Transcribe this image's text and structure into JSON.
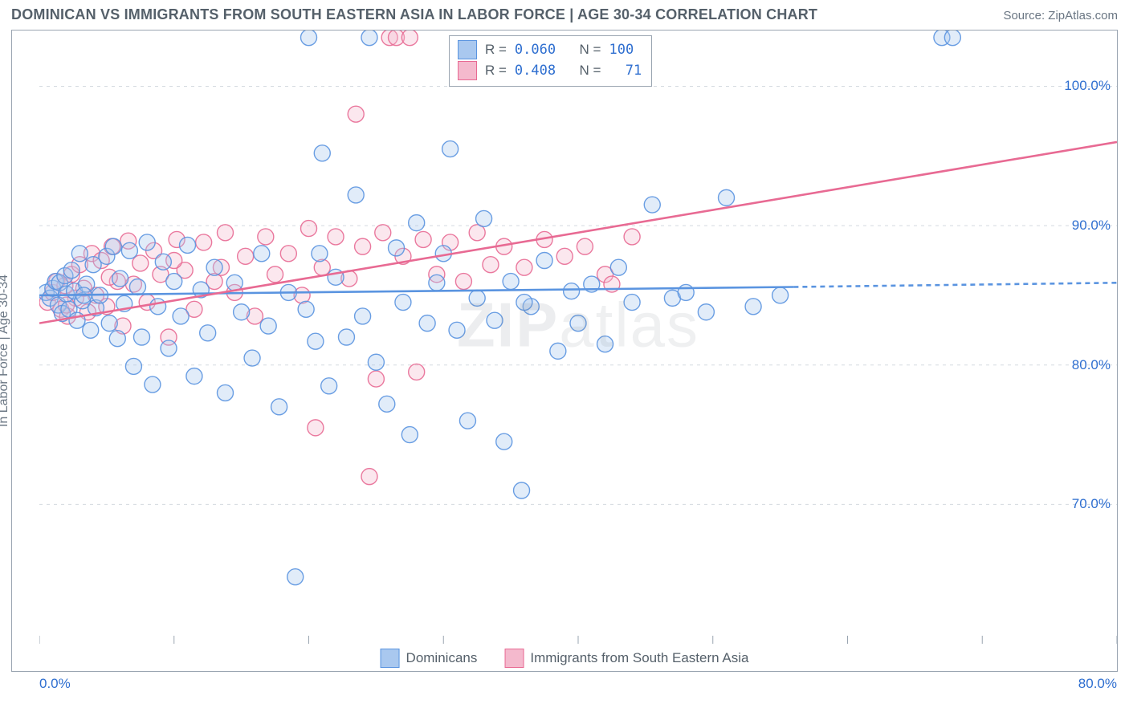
{
  "title": "DOMINICAN VS IMMIGRANTS FROM SOUTH EASTERN ASIA IN LABOR FORCE | AGE 30-34 CORRELATION CHART",
  "source": "Source: ZipAtlas.com",
  "watermark_bold": "ZIP",
  "watermark_rest": "atlas",
  "y_axis_label": "In Labor Force | Age 30-34",
  "chart": {
    "type": "scatter",
    "background_color": "#ffffff",
    "grid_color": "#d4d9df",
    "border_color": "#9aa5b1",
    "xlim": [
      0,
      80
    ],
    "ylim": [
      60,
      104
    ],
    "y_ticks": [
      70,
      80,
      90,
      100
    ],
    "y_tick_labels": [
      "70.0%",
      "80.0%",
      "90.0%",
      "100.0%"
    ],
    "x_ticks": [
      0,
      10,
      20,
      30,
      40,
      50,
      60,
      70,
      80
    ],
    "x_tick_labels_shown": {
      "0": "0.0%",
      "80": "80.0%"
    },
    "marker_radius": 10,
    "marker_fill_opacity": 0.35,
    "marker_stroke_opacity": 0.9,
    "marker_stroke_width": 1.4,
    "trend_line_width": 2.6
  },
  "series": {
    "s1": {
      "label": "Dominicans",
      "color": "#5a94e0",
      "fill": "#a9c8ef",
      "R": "0.060",
      "N": "100",
      "trend": {
        "x0": 0,
        "y0": 85.0,
        "x1": 56,
        "y1": 85.6,
        "dash_from_x": 56,
        "x2": 80,
        "y2": 85.9
      },
      "points": [
        [
          0.5,
          85.2
        ],
        [
          0.8,
          84.8
        ],
        [
          1.0,
          85.5
        ],
        [
          1.2,
          86.0
        ],
        [
          1.4,
          84.3
        ],
        [
          1.5,
          85.9
        ],
        [
          1.7,
          83.7
        ],
        [
          1.9,
          86.4
        ],
        [
          2.0,
          85.1
        ],
        [
          2.2,
          84.0
        ],
        [
          2.4,
          86.8
        ],
        [
          2.6,
          85.3
        ],
        [
          2.8,
          83.2
        ],
        [
          3.0,
          88.0
        ],
        [
          3.2,
          84.6
        ],
        [
          3.5,
          85.8
        ],
        [
          3.8,
          82.5
        ],
        [
          4.0,
          87.2
        ],
        [
          4.2,
          84.1
        ],
        [
          4.5,
          85.0
        ],
        [
          5.0,
          87.8
        ],
        [
          5.2,
          83.0
        ],
        [
          5.5,
          88.5
        ],
        [
          5.8,
          81.9
        ],
        [
          6.0,
          86.2
        ],
        [
          6.3,
          84.4
        ],
        [
          6.7,
          88.2
        ],
        [
          7.0,
          79.9
        ],
        [
          7.3,
          85.6
        ],
        [
          7.6,
          82.0
        ],
        [
          8.0,
          88.8
        ],
        [
          8.4,
          78.6
        ],
        [
          8.8,
          84.2
        ],
        [
          9.2,
          87.4
        ],
        [
          9.6,
          81.2
        ],
        [
          10.0,
          86.0
        ],
        [
          10.5,
          83.5
        ],
        [
          11.0,
          88.6
        ],
        [
          11.5,
          79.2
        ],
        [
          12.0,
          85.4
        ],
        [
          12.5,
          82.3
        ],
        [
          13.0,
          87.0
        ],
        [
          13.8,
          78.0
        ],
        [
          14.5,
          85.9
        ],
        [
          15.0,
          83.8
        ],
        [
          15.8,
          80.5
        ],
        [
          16.5,
          88.0
        ],
        [
          17.0,
          82.8
        ],
        [
          17.8,
          77.0
        ],
        [
          18.5,
          85.2
        ],
        [
          19.0,
          64.8
        ],
        [
          19.8,
          84.0
        ],
        [
          20.0,
          103.5
        ],
        [
          20.5,
          81.7
        ],
        [
          21.0,
          95.2
        ],
        [
          21.5,
          78.5
        ],
        [
          22.0,
          86.3
        ],
        [
          22.8,
          82.0
        ],
        [
          23.5,
          92.2
        ],
        [
          24.0,
          83.5
        ],
        [
          24.5,
          103.5
        ],
        [
          25.0,
          80.2
        ],
        [
          25.8,
          77.2
        ],
        [
          26.5,
          88.4
        ],
        [
          27.0,
          84.5
        ],
        [
          27.5,
          75.0
        ],
        [
          28.0,
          90.2
        ],
        [
          28.8,
          83.0
        ],
        [
          29.5,
          85.9
        ],
        [
          30.0,
          88.0
        ],
        [
          30.5,
          95.5
        ],
        [
          31.0,
          82.5
        ],
        [
          31.8,
          76.0
        ],
        [
          32.5,
          84.8
        ],
        [
          33.0,
          90.5
        ],
        [
          33.8,
          83.2
        ],
        [
          34.5,
          74.5
        ],
        [
          35.0,
          86.0
        ],
        [
          35.8,
          71.0
        ],
        [
          36.5,
          84.2
        ],
        [
          37.5,
          87.5
        ],
        [
          38.5,
          81.0
        ],
        [
          39.5,
          85.3
        ],
        [
          40.0,
          83.0
        ],
        [
          41.0,
          85.8
        ],
        [
          42.0,
          81.5
        ],
        [
          43.0,
          87.0
        ],
        [
          44.0,
          84.5
        ],
        [
          45.5,
          91.5
        ],
        [
          47.0,
          84.8
        ],
        [
          48.0,
          85.2
        ],
        [
          49.5,
          83.8
        ],
        [
          51.0,
          92.0
        ],
        [
          53.0,
          84.2
        ],
        [
          55.0,
          85.0
        ],
        [
          67.0,
          103.5
        ],
        [
          67.8,
          103.5
        ],
        [
          36.0,
          84.5
        ],
        [
          20.8,
          88.0
        ],
        [
          3.3,
          85.0
        ]
      ]
    },
    "s2": {
      "label": "Immigrants from South Eastern Asia",
      "color": "#e86a93",
      "fill": "#f4b9cd",
      "R": "0.408",
      "N": "71",
      "trend": {
        "x0": 0,
        "y0": 83.0,
        "x1": 80,
        "y1": 96.0
      },
      "points": [
        [
          0.6,
          84.5
        ],
        [
          1.0,
          85.2
        ],
        [
          1.3,
          86.0
        ],
        [
          1.6,
          84.0
        ],
        [
          1.9,
          85.7
        ],
        [
          2.1,
          83.5
        ],
        [
          2.4,
          86.5
        ],
        [
          2.7,
          84.8
        ],
        [
          3.0,
          87.2
        ],
        [
          3.3,
          85.5
        ],
        [
          3.6,
          83.8
        ],
        [
          3.9,
          88.0
        ],
        [
          4.2,
          85.0
        ],
        [
          4.6,
          87.5
        ],
        [
          5.0,
          84.2
        ],
        [
          5.4,
          88.5
        ],
        [
          5.8,
          86.0
        ],
        [
          6.2,
          82.8
        ],
        [
          6.6,
          88.9
        ],
        [
          7.0,
          85.8
        ],
        [
          7.5,
          87.3
        ],
        [
          8.0,
          84.5
        ],
        [
          8.5,
          88.2
        ],
        [
          9.0,
          86.5
        ],
        [
          9.6,
          82.0
        ],
        [
          10.2,
          89.0
        ],
        [
          10.8,
          86.8
        ],
        [
          11.5,
          84.0
        ],
        [
          12.2,
          88.8
        ],
        [
          13.0,
          86.0
        ],
        [
          13.8,
          89.5
        ],
        [
          14.5,
          85.2
        ],
        [
          15.3,
          87.8
        ],
        [
          16.0,
          83.5
        ],
        [
          16.8,
          89.2
        ],
        [
          17.5,
          86.5
        ],
        [
          18.5,
          88.0
        ],
        [
          19.5,
          85.0
        ],
        [
          20.0,
          89.8
        ],
        [
          20.5,
          75.5
        ],
        [
          21.0,
          87.0
        ],
        [
          22.0,
          89.2
        ],
        [
          23.0,
          86.2
        ],
        [
          23.5,
          98.0
        ],
        [
          24.0,
          88.5
        ],
        [
          25.0,
          79.0
        ],
        [
          25.5,
          89.5
        ],
        [
          26.0,
          103.5
        ],
        [
          26.5,
          103.5
        ],
        [
          27.0,
          87.8
        ],
        [
          27.5,
          103.5
        ],
        [
          28.0,
          79.5
        ],
        [
          28.5,
          89.0
        ],
        [
          29.5,
          86.5
        ],
        [
          30.5,
          88.8
        ],
        [
          31.5,
          86.0
        ],
        [
          32.5,
          89.5
        ],
        [
          33.5,
          87.2
        ],
        [
          34.5,
          88.5
        ],
        [
          36.0,
          87.0
        ],
        [
          37.5,
          89.0
        ],
        [
          39.0,
          87.8
        ],
        [
          40.5,
          88.5
        ],
        [
          42.0,
          86.5
        ],
        [
          44.0,
          89.2
        ],
        [
          42.5,
          85.8
        ],
        [
          24.5,
          72.0
        ],
        [
          10.0,
          87.5
        ],
        [
          5.2,
          86.3
        ],
        [
          2.0,
          84.3
        ],
        [
          13.5,
          87.0
        ]
      ]
    }
  },
  "stats_legend": {
    "label_R": "R =",
    "label_N": "N ="
  },
  "tick_label_color": "#2f6fd0",
  "axis_text_color": "#6a7683"
}
